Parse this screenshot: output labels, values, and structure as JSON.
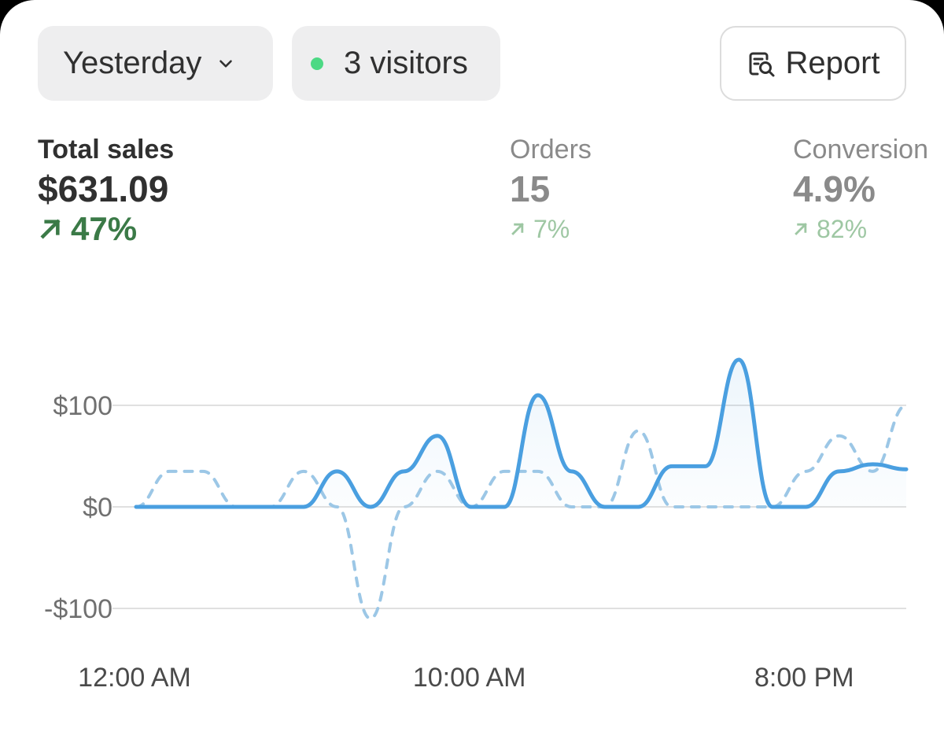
{
  "toolbar": {
    "period_label": "Yesterday",
    "visitors_label": "3 visitors",
    "report_label": "Report"
  },
  "metrics": [
    {
      "label": "Total sales",
      "value": "$631.09",
      "change": "47%"
    },
    {
      "label": "Orders",
      "value": "15",
      "change": "7%"
    },
    {
      "label": "Conversion",
      "value": "4.9%",
      "change": "82%"
    }
  ],
  "colors": {
    "current_line": "#4a9fe0",
    "comparison_line": "#9cc7e6",
    "positive": "#3b7a47",
    "positive_muted": "#9ec7a3",
    "live_dot": "#4cd984"
  },
  "chart_data": {
    "type": "line",
    "y_ticks": [
      "$100",
      "$0",
      "-$100"
    ],
    "y_tick_values": [
      100,
      0,
      -100
    ],
    "ylim": [
      -100,
      100
    ],
    "x_ticks": [
      "12:00 AM",
      "10:00 AM",
      "8:00 PM"
    ],
    "x_tick_hours": [
      0,
      10,
      20
    ],
    "xlim": [
      0,
      23
    ],
    "grid": true,
    "series": [
      {
        "style": "solid",
        "x": [
          0,
          1,
          2,
          3,
          4,
          5,
          6,
          7,
          8,
          9,
          10,
          11,
          12,
          13,
          14,
          15,
          16,
          17,
          18,
          19,
          20,
          21,
          22,
          23
        ],
        "values": [
          0,
          0,
          0,
          0,
          0,
          0,
          35,
          0,
          35,
          70,
          0,
          0,
          110,
          35,
          0,
          0,
          40,
          40,
          145,
          0,
          0,
          35,
          42,
          37
        ]
      },
      {
        "style": "dashed",
        "x": [
          0,
          1,
          2,
          3,
          4,
          5,
          6,
          7,
          8,
          9,
          10,
          11,
          12,
          13,
          14,
          15,
          16,
          17,
          18,
          19,
          20,
          21,
          22,
          23
        ],
        "values": [
          0,
          35,
          35,
          0,
          0,
          35,
          0,
          -110,
          0,
          35,
          0,
          35,
          35,
          0,
          0,
          75,
          0,
          0,
          0,
          0,
          35,
          70,
          35,
          100
        ]
      }
    ]
  }
}
